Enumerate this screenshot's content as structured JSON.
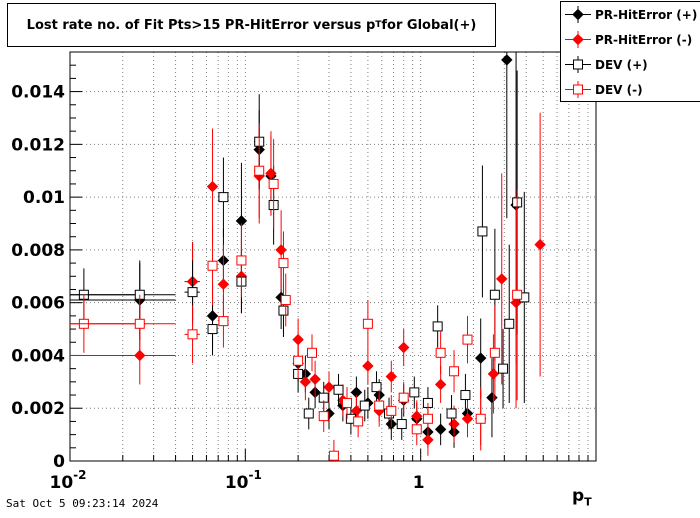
{
  "title": {
    "prefix": "Lost rate no. of Fit Pts>15 PR-HitError versus p",
    "sub": "T",
    "suffix": " for Global(+)"
  },
  "timestamp": "Sat Oct  5 09:23:14 2024",
  "xaxis": {
    "label_main": "p",
    "label_sub": "T"
  },
  "colors": {
    "black": "#000000",
    "red": "#ff0000",
    "grid": "#7f7f7f"
  },
  "legend": [
    {
      "label": "PR-HitError (+)",
      "marker": "filled-diamond",
      "color": "#000000"
    },
    {
      "label": "PR-HitError (-)",
      "marker": "filled-diamond",
      "color": "#ff0000"
    },
    {
      "label": "DEV (+)",
      "marker": "open-square",
      "color": "#000000"
    },
    {
      "label": "DEV (-)",
      "marker": "open-square",
      "color": "#ff0000"
    }
  ],
  "chart_data": {
    "type": "scatter",
    "xscale": "log",
    "xlim": [
      0.01,
      10
    ],
    "ylim": [
      0,
      0.0155
    ],
    "grid": true,
    "legend_position": "top-right",
    "x_ticks": [
      {
        "value": 0.01,
        "base": "10",
        "exp": "-2"
      },
      {
        "value": 0.1,
        "base": "10",
        "exp": "-1"
      },
      {
        "value": 1,
        "base": "1",
        "exp": ""
      }
    ],
    "y_ticks": [
      {
        "value": 0,
        "label": "0"
      },
      {
        "value": 0.002,
        "label": "0.002"
      },
      {
        "value": 0.004,
        "label": "0.004"
      },
      {
        "value": 0.006,
        "label": "0.006"
      },
      {
        "value": 0.008,
        "label": "0.008"
      },
      {
        "value": 0.01,
        "label": "0.01"
      },
      {
        "value": 0.012,
        "label": "0.012"
      },
      {
        "value": 0.014,
        "label": "0.014"
      }
    ],
    "series": [
      {
        "name": "PR-HitError (+)",
        "marker": "filled-diamond",
        "color": "#000000",
        "points": [
          [
            0.025,
            0.0061,
            0.015,
            0.0015
          ],
          [
            0.05,
            0.0068,
            0.005,
            0.0015
          ],
          [
            0.065,
            0.0055,
            0.003,
            0.0012
          ],
          [
            0.075,
            0.0076,
            0.003,
            0.0012
          ],
          [
            0.095,
            0.0091,
            0.004,
            0.0022
          ],
          [
            0.12,
            0.0118,
            0.008,
            0.0015
          ],
          [
            0.14,
            0.0108,
            0.008,
            0.0015
          ],
          [
            0.16,
            0.0062,
            0.005,
            0.0012
          ],
          [
            0.2,
            0.0037,
            0.008,
            0.0007
          ],
          [
            0.22,
            0.0033,
            0.01,
            0.0007
          ],
          [
            0.25,
            0.0026,
            0.01,
            0.0006
          ],
          [
            0.3,
            0.0018,
            0.01,
            0.0006
          ],
          [
            0.36,
            0.0021,
            0.01,
            0.0006
          ],
          [
            0.43,
            0.0026,
            0.01,
            0.0006
          ],
          [
            0.5,
            0.0022,
            0.01,
            0.0006
          ],
          [
            0.58,
            0.0025,
            0.01,
            0.0006
          ],
          [
            0.68,
            0.0014,
            0.01,
            0.0006
          ],
          [
            0.8,
            0.0023,
            0.01,
            0.0006
          ],
          [
            0.95,
            0.0016,
            0.01,
            0.0006
          ],
          [
            1.1,
            0.0011,
            0.01,
            0.0006
          ],
          [
            1.3,
            0.0012,
            0.02,
            0.0006
          ],
          [
            1.55,
            0.0011,
            0.02,
            0.0006
          ],
          [
            1.85,
            0.0018,
            0.03,
            0.0007
          ],
          [
            2.2,
            0.0039,
            0.04,
            0.0015
          ],
          [
            2.55,
            0.0024,
            0.06,
            0.0015
          ],
          [
            3.1,
            0.0152,
            0.1,
            0.006
          ],
          [
            3.5,
            0.0097,
            0.15,
            0.006
          ]
        ]
      },
      {
        "name": "PR-HitError (-)",
        "marker": "filled-diamond",
        "color": "#ff0000",
        "points": [
          [
            0.025,
            0.004,
            0.015,
            0.0011
          ],
          [
            0.05,
            0.0068,
            0.005,
            0.0015
          ],
          [
            0.065,
            0.0104,
            0.003,
            0.0022
          ],
          [
            0.075,
            0.0067,
            0.003,
            0.0015
          ],
          [
            0.095,
            0.007,
            0.004,
            0.0014
          ],
          [
            0.12,
            0.0108,
            0.008,
            0.0018
          ],
          [
            0.14,
            0.0109,
            0.008,
            0.0016
          ],
          [
            0.16,
            0.008,
            0.005,
            0.0015
          ],
          [
            0.2,
            0.0046,
            0.008,
            0.0008
          ],
          [
            0.22,
            0.003,
            0.01,
            0.0007
          ],
          [
            0.25,
            0.0031,
            0.01,
            0.0007
          ],
          [
            0.3,
            0.0028,
            0.01,
            0.0006
          ],
          [
            0.36,
            0.0023,
            0.01,
            0.0006
          ],
          [
            0.43,
            0.0019,
            0.01,
            0.0006
          ],
          [
            0.5,
            0.0036,
            0.01,
            0.0007
          ],
          [
            0.58,
            0.0019,
            0.01,
            0.0006
          ],
          [
            0.68,
            0.0032,
            0.01,
            0.0006
          ],
          [
            0.8,
            0.0043,
            0.01,
            0.0007
          ],
          [
            0.95,
            0.0017,
            0.01,
            0.0006
          ],
          [
            1.1,
            0.0008,
            0.01,
            0.0006
          ],
          [
            1.3,
            0.0029,
            0.02,
            0.0007
          ],
          [
            1.55,
            0.0014,
            0.02,
            0.0007
          ],
          [
            1.85,
            0.0016,
            0.03,
            0.0007
          ],
          [
            2.2,
            0.0016,
            0.04,
            0.0012
          ],
          [
            2.6,
            0.0033,
            0.06,
            0.0015
          ],
          [
            2.9,
            0.0069,
            0.08,
            0.004
          ],
          [
            3.5,
            0.006,
            0.15,
            0.004
          ],
          [
            4.8,
            0.0082,
            0.3,
            0.005
          ]
        ]
      },
      {
        "name": "DEV (+)",
        "marker": "open-square",
        "color": "#000000",
        "points": [
          [
            0.012,
            0.0063,
            0.015,
            0.001
          ],
          [
            0.025,
            0.0063,
            0.015,
            0.0012
          ],
          [
            0.05,
            0.0064,
            0.005,
            0.0012
          ],
          [
            0.065,
            0.005,
            0.003,
            0.001
          ],
          [
            0.075,
            0.01,
            0.003,
            0.0015
          ],
          [
            0.095,
            0.0068,
            0.004,
            0.0012
          ],
          [
            0.12,
            0.0121,
            0.008,
            0.0018
          ],
          [
            0.145,
            0.0097,
            0.006,
            0.0015
          ],
          [
            0.165,
            0.0057,
            0.005,
            0.001
          ],
          [
            0.2,
            0.0033,
            0.008,
            0.0007
          ],
          [
            0.23,
            0.0018,
            0.01,
            0.0006
          ],
          [
            0.28,
            0.0024,
            0.01,
            0.0006
          ],
          [
            0.34,
            0.0027,
            0.01,
            0.0006
          ],
          [
            0.4,
            0.0016,
            0.01,
            0.0006
          ],
          [
            0.48,
            0.0021,
            0.01,
            0.0006
          ],
          [
            0.56,
            0.0028,
            0.01,
            0.0006
          ],
          [
            0.66,
            0.0018,
            0.01,
            0.0006
          ],
          [
            0.78,
            0.0014,
            0.01,
            0.0006
          ],
          [
            0.92,
            0.0026,
            0.01,
            0.0006
          ],
          [
            1.1,
            0.0022,
            0.01,
            0.0006
          ],
          [
            1.25,
            0.0051,
            0.02,
            0.0008
          ],
          [
            1.5,
            0.0018,
            0.02,
            0.0007
          ],
          [
            1.8,
            0.0025,
            0.03,
            0.0008
          ],
          [
            2.25,
            0.0087,
            0.04,
            0.0025
          ],
          [
            2.65,
            0.0063,
            0.06,
            0.0025
          ],
          [
            2.95,
            0.0035,
            0.08,
            0.0015
          ],
          [
            3.2,
            0.0052,
            0.1,
            0.003
          ],
          [
            3.55,
            0.0098,
            0.15,
            0.005
          ],
          [
            3.9,
            0.0062,
            0.2,
            0.004
          ]
        ]
      },
      {
        "name": "DEV (-)",
        "marker": "open-square",
        "color": "#ff0000",
        "points": [
          [
            0.012,
            0.0052,
            0.015,
            0.0011
          ],
          [
            0.025,
            0.0052,
            0.015,
            0.0011
          ],
          [
            0.05,
            0.0048,
            0.005,
            0.0011
          ],
          [
            0.065,
            0.0074,
            0.003,
            0.0015
          ],
          [
            0.075,
            0.0053,
            0.003,
            0.001
          ],
          [
            0.095,
            0.0076,
            0.004,
            0.0014
          ],
          [
            0.12,
            0.011,
            0.008,
            0.0018
          ],
          [
            0.145,
            0.0105,
            0.006,
            0.0017
          ],
          [
            0.165,
            0.0075,
            0.005,
            0.0012
          ],
          [
            0.17,
            0.0061,
            0.005,
            0.001
          ],
          [
            0.2,
            0.0038,
            0.008,
            0.0007
          ],
          [
            0.24,
            0.0041,
            0.01,
            0.0007
          ],
          [
            0.28,
            0.0017,
            0.01,
            0.0006
          ],
          [
            0.32,
            0.0002,
            0.01,
            0.0006
          ],
          [
            0.38,
            0.0022,
            0.01,
            0.0006
          ],
          [
            0.44,
            0.0015,
            0.01,
            0.0006
          ],
          [
            0.5,
            0.0052,
            0.01,
            0.0009
          ],
          [
            0.58,
            0.0021,
            0.01,
            0.0006
          ],
          [
            0.68,
            0.0019,
            0.01,
            0.0006
          ],
          [
            0.8,
            0.0024,
            0.01,
            0.0006
          ],
          [
            0.95,
            0.0012,
            0.01,
            0.0006
          ],
          [
            1.1,
            0.0016,
            0.01,
            0.0006
          ],
          [
            1.3,
            0.0041,
            0.02,
            0.0008
          ],
          [
            1.55,
            0.0034,
            0.02,
            0.0008
          ],
          [
            1.85,
            0.0046,
            0.03,
            0.0009
          ],
          [
            2.2,
            0.0016,
            0.04,
            0.001
          ],
          [
            2.65,
            0.0041,
            0.06,
            0.0018
          ],
          [
            3.55,
            0.0063,
            0.15,
            0.004
          ]
        ]
      }
    ]
  }
}
